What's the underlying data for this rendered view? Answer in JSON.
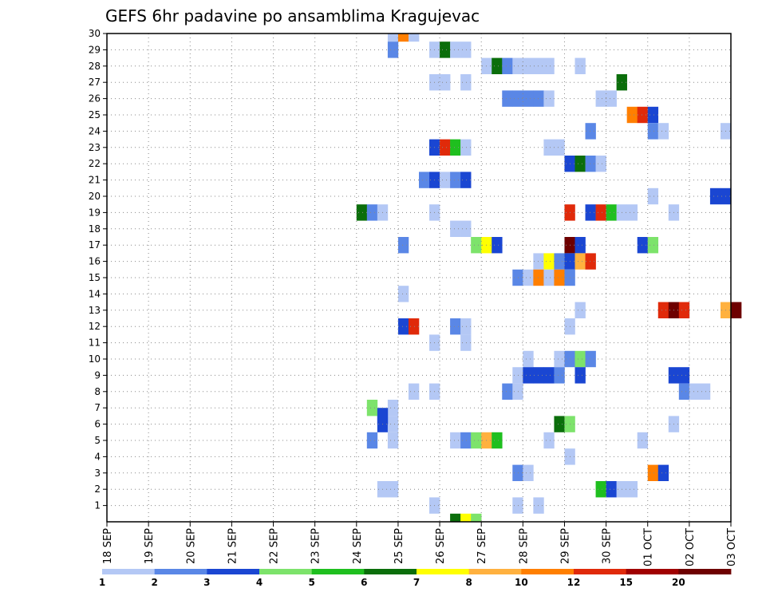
{
  "chart_data": {
    "type": "heatmap",
    "title": "GEFS 6hr padavine po ansamblima Kragujevac",
    "y_ticks": [
      "1",
      "2",
      "3",
      "4",
      "5",
      "6",
      "7",
      "8",
      "9",
      "10",
      "11",
      "12",
      "13",
      "14",
      "15",
      "16",
      "17",
      "18",
      "19",
      "20",
      "21",
      "22",
      "23",
      "24",
      "25",
      "26",
      "27",
      "28",
      "29",
      "30"
    ],
    "x_ticks": [
      "18 SEP",
      "19 SEP",
      "20 SEP",
      "21 SEP",
      "22 SEP",
      "23 SEP",
      "24 SEP",
      "25 SEP",
      "26 SEP",
      "27 SEP",
      "28 SEP",
      "29 SEP",
      "30 SEP",
      "01 OCT",
      "02 OCT",
      "03 OCT"
    ],
    "xlim_days": [
      0,
      15
    ],
    "ylim": [
      0,
      30
    ],
    "grid": true,
    "legend": {
      "placement": "bottom",
      "labels": [
        "1",
        "2",
        "3",
        "4",
        "5",
        "6",
        "7",
        "8",
        "10",
        "12",
        "15",
        "20"
      ],
      "colors": [
        "#b4c8f5",
        "#5a87e6",
        "#1a46d2",
        "#7de36b",
        "#1fbf1f",
        "#0b6e0b",
        "#ffff00",
        "#ffb13f",
        "#ff7f00",
        "#e02a0a",
        "#a00000",
        "#6e0000"
      ]
    },
    "cells": [
      [
        30,
        6.75,
        1
      ],
      [
        30,
        7,
        10
      ],
      [
        30,
        7.25,
        1
      ],
      [
        29,
        6.75,
        2
      ],
      [
        29,
        7.75,
        1
      ],
      [
        29,
        8,
        6
      ],
      [
        29,
        8.25,
        1
      ],
      [
        29,
        8.5,
        1
      ],
      [
        28,
        9,
        1
      ],
      [
        28,
        9.25,
        6
      ],
      [
        28,
        9.5,
        2
      ],
      [
        28,
        9.75,
        1
      ],
      [
        28,
        10,
        1
      ],
      [
        28,
        10.25,
        1
      ],
      [
        28,
        10.5,
        1
      ],
      [
        28,
        11.25,
        1
      ],
      [
        27,
        7.75,
        1
      ],
      [
        27,
        8,
        1
      ],
      [
        27,
        8.5,
        1
      ],
      [
        27,
        12.25,
        6
      ],
      [
        26,
        9.5,
        2
      ],
      [
        26,
        9.75,
        2
      ],
      [
        26,
        10,
        2
      ],
      [
        26,
        10.25,
        2
      ],
      [
        26,
        10.5,
        1
      ],
      [
        26,
        11.75,
        1
      ],
      [
        26,
        12,
        1
      ],
      [
        25,
        12.5,
        10
      ],
      [
        25,
        12.75,
        12
      ],
      [
        25,
        13,
        3
      ],
      [
        24,
        11.5,
        2
      ],
      [
        24,
        13,
        2
      ],
      [
        24,
        13.25,
        1
      ],
      [
        24,
        14.75,
        1
      ],
      [
        23,
        7.75,
        3
      ],
      [
        23,
        8,
        12
      ],
      [
        23,
        8.25,
        5
      ],
      [
        23,
        8.5,
        1
      ],
      [
        23,
        10.5,
        1
      ],
      [
        23,
        10.75,
        1
      ],
      [
        22,
        11,
        3
      ],
      [
        22,
        11.25,
        6
      ],
      [
        22,
        11.5,
        2
      ],
      [
        22,
        11.75,
        1
      ],
      [
        21,
        7.5,
        2
      ],
      [
        21,
        7.75,
        3
      ],
      [
        21,
        8,
        1
      ],
      [
        21,
        8.25,
        2
      ],
      [
        21,
        8.5,
        3
      ],
      [
        20,
        13,
        1
      ],
      [
        20,
        14.5,
        3
      ],
      [
        20,
        14.75,
        3
      ],
      [
        19,
        6,
        6
      ],
      [
        19,
        6.25,
        2
      ],
      [
        19,
        6.5,
        1
      ],
      [
        19,
        7.75,
        1
      ],
      [
        19,
        11,
        12
      ],
      [
        19,
        11.5,
        3
      ],
      [
        19,
        11.75,
        12
      ],
      [
        19,
        12,
        5
      ],
      [
        19,
        12.25,
        1
      ],
      [
        19,
        12.5,
        1
      ],
      [
        19,
        13.5,
        1
      ],
      [
        18,
        8.25,
        1
      ],
      [
        18,
        8.5,
        1
      ],
      [
        17,
        7,
        2
      ],
      [
        17,
        8.75,
        4
      ],
      [
        17,
        9,
        7
      ],
      [
        17,
        9.25,
        3
      ],
      [
        17,
        11,
        20
      ],
      [
        17,
        11.25,
        3
      ],
      [
        17,
        12.75,
        3
      ],
      [
        17,
        13,
        4
      ],
      [
        16,
        10.25,
        1
      ],
      [
        16,
        10.5,
        7
      ],
      [
        16,
        10.75,
        2
      ],
      [
        16,
        11,
        3
      ],
      [
        16,
        11.25,
        8
      ],
      [
        16,
        11.5,
        12
      ],
      [
        15,
        9.75,
        2
      ],
      [
        15,
        10,
        1
      ],
      [
        15,
        10.25,
        10
      ],
      [
        15,
        10.5,
        1
      ],
      [
        15,
        10.75,
        10
      ],
      [
        15,
        11,
        2
      ],
      [
        14,
        7,
        1
      ],
      [
        13,
        11.25,
        1
      ],
      [
        13,
        13.25,
        12
      ],
      [
        13,
        13.5,
        20
      ],
      [
        13,
        13.75,
        12
      ],
      [
        13,
        14.75,
        8
      ],
      [
        13,
        15,
        20
      ],
      [
        12,
        7,
        3
      ],
      [
        12,
        7.25,
        12
      ],
      [
        12,
        8.25,
        2
      ],
      [
        12,
        8.5,
        1
      ],
      [
        12,
        11,
        1
      ],
      [
        11,
        7.75,
        1
      ],
      [
        11,
        8.5,
        1
      ],
      [
        10,
        10,
        1
      ],
      [
        10,
        10.75,
        1
      ],
      [
        10,
        11,
        2
      ],
      [
        10,
        11.25,
        4
      ],
      [
        10,
        11.5,
        2
      ],
      [
        9,
        9.75,
        1
      ],
      [
        9,
        10,
        3
      ],
      [
        9,
        10.25,
        3
      ],
      [
        9,
        10.5,
        3
      ],
      [
        9,
        10.75,
        2
      ],
      [
        9,
        11.25,
        3
      ],
      [
        9,
        13.5,
        3
      ],
      [
        9,
        13.75,
        3
      ],
      [
        8,
        7.25,
        1
      ],
      [
        8,
        7.75,
        1
      ],
      [
        8,
        9.5,
        2
      ],
      [
        8,
        9.75,
        1
      ],
      [
        8,
        13.75,
        2
      ],
      [
        8,
        14,
        1
      ],
      [
        8,
        14.25,
        1
      ],
      [
        7,
        6.25,
        4
      ],
      [
        7,
        6.75,
        1
      ],
      [
        6,
        6.5,
        3
      ],
      [
        6,
        6.75,
        1
      ],
      [
        6,
        10.75,
        6
      ],
      [
        6,
        11,
        4
      ],
      [
        6,
        13.5,
        1
      ],
      [
        5,
        6.25,
        2
      ],
      [
        6.5,
        6.5,
        3
      ],
      [
        5,
        6.75,
        1
      ],
      [
        5,
        8.25,
        1
      ],
      [
        5,
        8.5,
        2
      ],
      [
        5,
        8.75,
        4
      ],
      [
        5,
        9,
        8
      ],
      [
        5,
        9.25,
        5
      ],
      [
        5,
        10.5,
        1
      ],
      [
        5,
        12.75,
        1
      ],
      [
        4,
        11,
        1
      ],
      [
        3,
        9.75,
        2
      ],
      [
        3,
        10,
        1
      ],
      [
        3,
        13,
        10
      ],
      [
        3,
        13.25,
        3
      ],
      [
        2,
        6.5,
        1
      ],
      [
        2,
        6.75,
        1
      ],
      [
        2,
        11.75,
        5
      ],
      [
        2,
        12,
        3
      ],
      [
        2,
        12.25,
        1
      ],
      [
        2,
        12.5,
        1
      ],
      [
        1,
        7.75,
        1
      ],
      [
        1,
        9.75,
        1
      ],
      [
        1,
        10.25,
        1
      ],
      [
        0,
        8.25,
        6
      ],
      [
        0,
        8.5,
        7
      ],
      [
        0,
        8.75,
        4
      ]
    ]
  }
}
